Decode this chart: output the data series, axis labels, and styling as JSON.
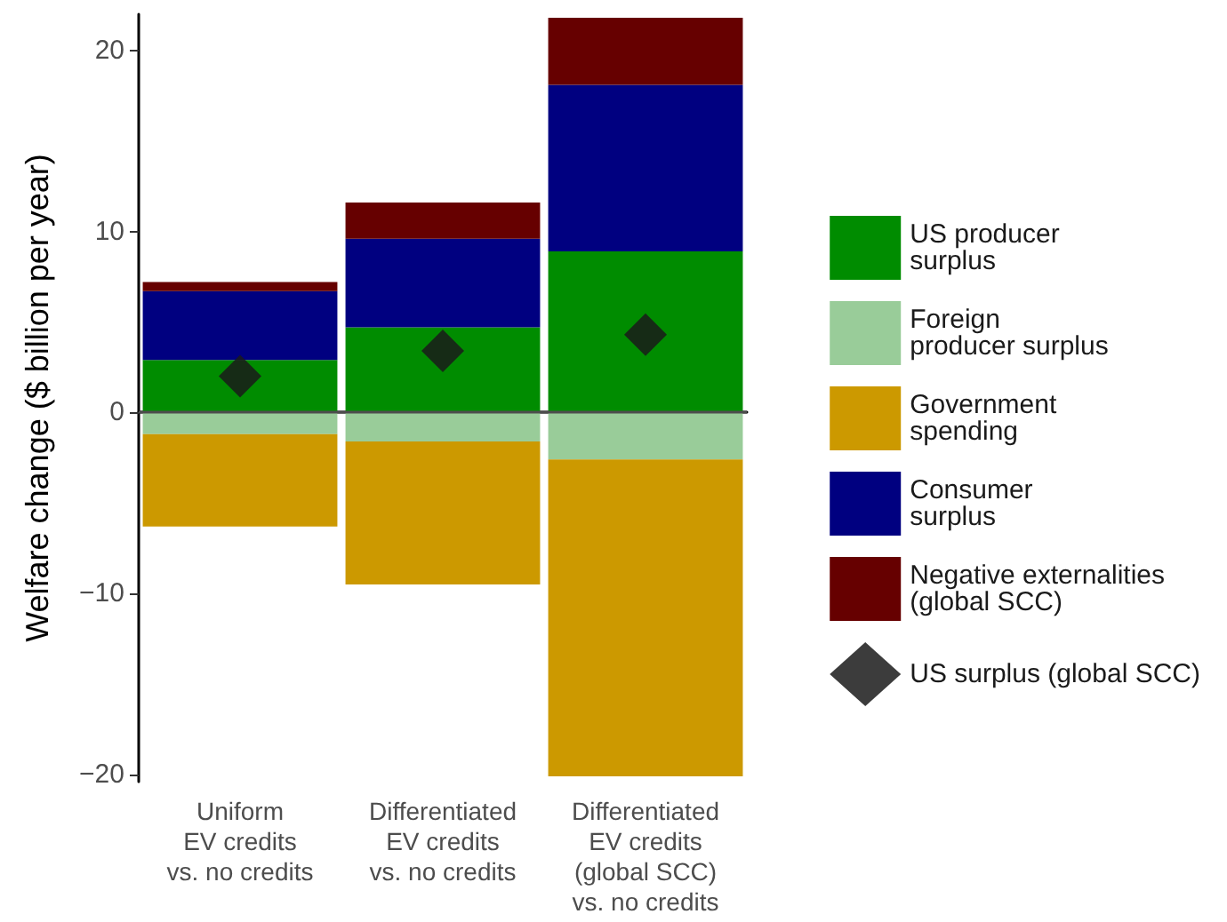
{
  "chart_data": {
    "type": "bar",
    "stacked": true,
    "ylabel": "Welfare change ($ billion per year)",
    "categories": [
      "Uniform\nEV credits\nvs. no credits",
      "Differentiated\nEV credits\nvs. no credits",
      "Differentiated\nEV credits\n(global SCC)\nvs. no credits"
    ],
    "series": [
      {
        "name": "US producer\nsurplus",
        "color": "#008c00",
        "values": [
          2.9,
          4.7,
          8.9
        ]
      },
      {
        "name": "Foreign\nproducer surplus",
        "color": "#99cc99",
        "values": [
          -1.2,
          -1.6,
          -2.6
        ]
      },
      {
        "name": "Government\nspending",
        "color": "#cc9900",
        "values": [
          -5.1,
          -7.9,
          -17.5
        ]
      },
      {
        "name": "Consumer\nsurplus",
        "color": "#000080",
        "values": [
          3.8,
          4.9,
          9.2
        ]
      },
      {
        "name": "Negative externalities\n(global SCC)",
        "color": "#660000",
        "values": [
          0.5,
          2.0,
          3.7
        ]
      },
      {
        "name": "US surplus (global SCC)",
        "type": "scatter",
        "color": "#1a1a1a",
        "x": [
          "Uniform\nEV credits\nvs. no credits",
          "Differentiated\nEV credits\nvs. no credits",
          "Differentiated\nEV credits\n(global SCC)\nvs. no credits"
        ],
        "values": [
          2.0,
          3.4,
          4.3
        ]
      }
    ],
    "marker": "diamond",
    "ylim": [
      -20.4,
      22
    ],
    "yticks": [
      {
        "value": -20,
        "label": "−20"
      },
      {
        "value": -10,
        "label": "−10"
      },
      0,
      10,
      20
    ],
    "ref_lines": [
      {
        "axis": "y",
        "value": 0,
        "color": "#4d4d4d"
      }
    ],
    "grid": false,
    "legend": "right"
  }
}
